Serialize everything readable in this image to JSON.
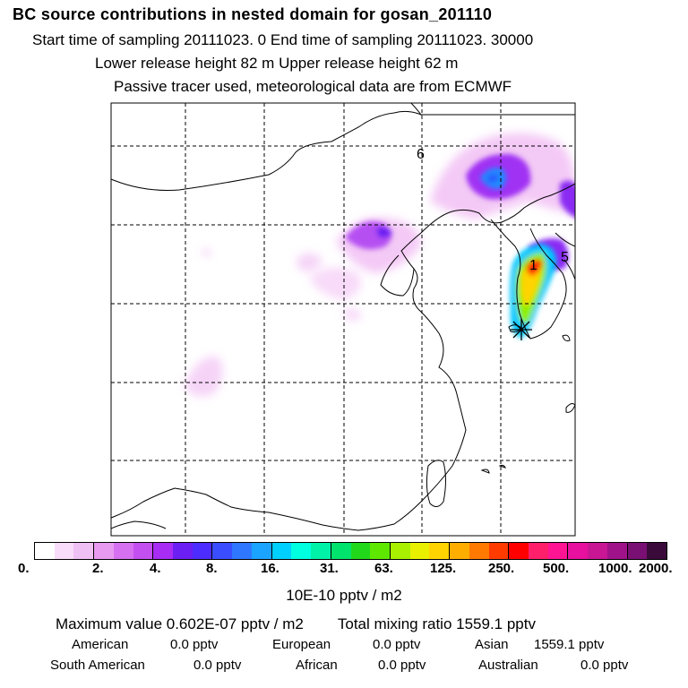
{
  "header": {
    "title": "BC  source contributions in nested domain for gosan_201110",
    "line1": "Start time of sampling 20111023.     0     End time of sampling 20111023. 30000",
    "line2": "Lower release height   82 m          Upper release height   62 m",
    "line3": "Passive tracer used, meteorological data are from ECMWF"
  },
  "map": {
    "markers": [
      {
        "label": "6"
      },
      {
        "label": "5"
      },
      {
        "label": "1"
      }
    ],
    "receptor_icon": "asterisk-receptor-icon",
    "gridlines": "dashed black",
    "plume_colors": {
      "low": "#f5c6f7",
      "mid": "#9c2df5",
      "high": "#00c6ff",
      "peak": "#ff2020"
    }
  },
  "colorbar": {
    "colors": [
      "#ffffff",
      "#f8dcf9",
      "#efc0f4",
      "#e89af1",
      "#d770f0",
      "#c44ff0",
      "#a82cf3",
      "#6b1ff3",
      "#4d2cff",
      "#3a4dff",
      "#2f77ff",
      "#1aa3ff",
      "#00d0ff",
      "#00ffe1",
      "#00f2a8",
      "#00e36c",
      "#21d91a",
      "#5ee800",
      "#a9f000",
      "#e8f000",
      "#ffd400",
      "#ffae00",
      "#ff7a00",
      "#ff3b00",
      "#ff0000",
      "#ff1f6b",
      "#ff1493",
      "#e8109e",
      "#c81694",
      "#a0128a",
      "#7a0f74",
      "#3a0a3a"
    ],
    "ticks": [
      "0.",
      "2.",
      "4.",
      "8.",
      "16.",
      "31.",
      "63.",
      "125.",
      "250.",
      "500.",
      "1000.",
      "2000."
    ],
    "unit": "10E-10 pptv / m2"
  },
  "summary": {
    "max_label": "Maximum value  0.602E-07 pptv / m2",
    "total_label": "Total mixing ratio      1559.1 pptv",
    "regions": [
      {
        "name": "American",
        "value": "0.0 pptv"
      },
      {
        "name": "European",
        "value": "0.0 pptv"
      },
      {
        "name": "Asian",
        "value": "1559.1 pptv"
      },
      {
        "name": "South American",
        "value": "0.0 pptv"
      },
      {
        "name": "African",
        "value": "0.0 pptv"
      },
      {
        "name": "Australian",
        "value": "0.0 pptv"
      }
    ]
  }
}
